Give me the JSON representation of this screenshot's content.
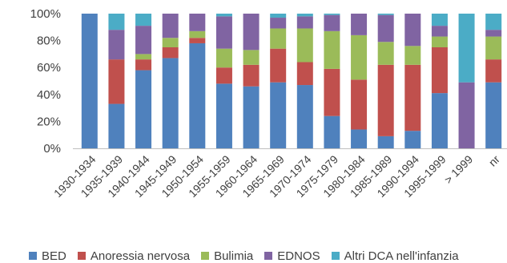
{
  "chart_data": {
    "type": "bar",
    "stacked": true,
    "percent": true,
    "title": "",
    "xlabel": "",
    "ylabel": "",
    "ylim": [
      0,
      100
    ],
    "yticks": [
      "0%",
      "20%",
      "40%",
      "60%",
      "80%",
      "100%"
    ],
    "grid": false,
    "legend_position": "bottom",
    "categories": [
      "1930-1934",
      "1935-1939",
      "1940-1944",
      "1945-1949",
      "1950-1954",
      "1955-1959",
      "1960-1964",
      "1965-1969",
      "1970-1974",
      "1975-1979",
      "1980-1984",
      "1985-1989",
      "1990-1994",
      "1995-1999",
      "> 1999",
      "nr"
    ],
    "series": [
      {
        "name": "BED",
        "color": "#4F81BD",
        "values": [
          100,
          33,
          58,
          67,
          78,
          48,
          46,
          49,
          47,
          24,
          14,
          9,
          13,
          41,
          0,
          49
        ]
      },
      {
        "name": "Anoressia nervosa",
        "color": "#C0504D",
        "values": [
          0,
          33,
          8,
          8,
          4,
          12,
          16,
          25,
          17,
          35,
          37,
          53,
          49,
          34,
          0,
          17
        ]
      },
      {
        "name": "Bulimia",
        "color": "#9BBB59",
        "values": [
          0,
          0,
          4,
          7,
          5,
          14,
          11,
          15,
          25,
          28,
          33,
          17,
          14,
          8,
          0,
          17
        ]
      },
      {
        "name": "EDNOS",
        "color": "#8064A2",
        "values": [
          0,
          22,
          21,
          18,
          13,
          24,
          27,
          8,
          9,
          12,
          16,
          20,
          24,
          8,
          49,
          5
        ]
      },
      {
        "name": "Altri DCA nell'infanzia",
        "color": "#4BACC6",
        "values": [
          0,
          12,
          9,
          0,
          0,
          2,
          0,
          3,
          2,
          1,
          0,
          1,
          0,
          9,
          51,
          12
        ]
      }
    ]
  }
}
